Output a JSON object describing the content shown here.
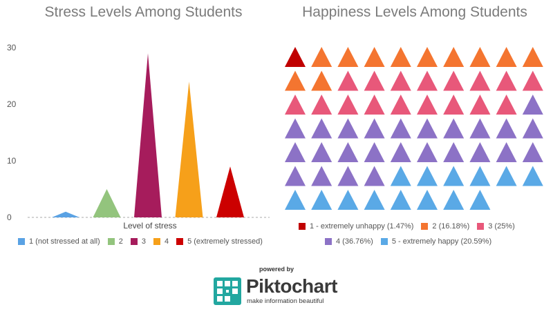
{
  "stress_chart": {
    "title": "Stress Levels Among Students",
    "xlabel": "Level of stress",
    "legend": [
      {
        "label": "1 (not stressed at all)",
        "color": "#5aa2e4"
      },
      {
        "label": "2",
        "color": "#93c47d"
      },
      {
        "label": "3",
        "color": "#a61c5c"
      },
      {
        "label": "4",
        "color": "#f6a01a"
      },
      {
        "label": "5 (extremely stressed)",
        "color": "#cc0000"
      }
    ]
  },
  "happiness_chart": {
    "title": "Happiness Levels Among Students",
    "legend": [
      {
        "label": "1 - extremely unhappy (1.47%)",
        "color": "#c00000"
      },
      {
        "label": "2 (16.18%)",
        "color": "#f47530"
      },
      {
        "label": "3 (25%)",
        "color": "#e8587a"
      },
      {
        "label": "4 (36.76%)",
        "color": "#8c72c6"
      },
      {
        "label": "5 - extremely happy (20.59%)",
        "color": "#5aa9e6"
      }
    ]
  },
  "branding": {
    "powered_by": "powered by",
    "brand_name": "Piktochart",
    "tagline": "make information beautiful"
  },
  "chart_data": [
    {
      "type": "bar",
      "title": "Stress Levels Among Students",
      "xlabel": "Level of stress",
      "ylabel": "",
      "categories": [
        "1 (not stressed at all)",
        "2",
        "3",
        "4",
        "5 (extremely stressed)"
      ],
      "values": [
        1,
        5,
        29,
        24,
        9
      ],
      "ylim": [
        0,
        30
      ],
      "yticks": [
        0,
        10,
        20,
        30
      ],
      "grid": false,
      "legend_position": "bottom"
    },
    {
      "type": "pictograph",
      "title": "Happiness Levels Among Students",
      "categories": [
        "1 - extremely unhappy (1.47%)",
        "2 (16.18%)",
        "3 (25%)",
        "4 (36.76%)",
        "5 - extremely happy (20.59%)"
      ],
      "values": [
        1,
        11,
        17,
        25,
        14
      ],
      "percentages": [
        1.47,
        16.18,
        25,
        36.76,
        20.59
      ],
      "legend_position": "bottom"
    }
  ]
}
